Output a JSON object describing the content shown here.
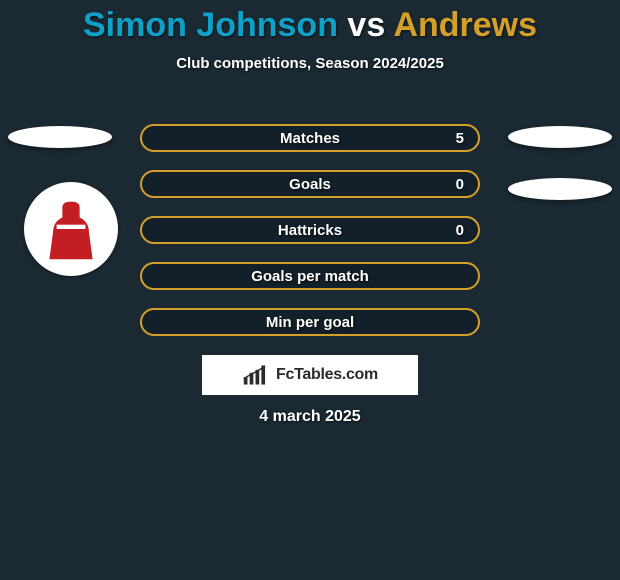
{
  "background_color": "#1a2932",
  "title": {
    "player1": "Simon Johnson",
    "player1_color": "#0fa0c7",
    "vs": "vs",
    "vs_color": "#ffffff",
    "player2": "Andrews",
    "player2_color": "#d4a02a",
    "fontsize": 34
  },
  "subtitle": "Club competitions, Season 2024/2025",
  "stats": {
    "bar_border_color": "#d4a02a",
    "bar_fill_color": "#132029",
    "rows": [
      {
        "label": "Matches",
        "value": "5"
      },
      {
        "label": "Goals",
        "value": "0"
      },
      {
        "label": "Hattricks",
        "value": "0"
      },
      {
        "label": "Goals per match",
        "value": ""
      },
      {
        "label": "Min per goal",
        "value": ""
      }
    ]
  },
  "ellipses": {
    "color": "#ffffff"
  },
  "club_logo": {
    "shape_color": "#c41e25",
    "background": "#ffffff"
  },
  "brand": {
    "text": "FcTables.com",
    "icon_color": "#2b2b2b",
    "background": "#ffffff"
  },
  "date": "4 march 2025"
}
